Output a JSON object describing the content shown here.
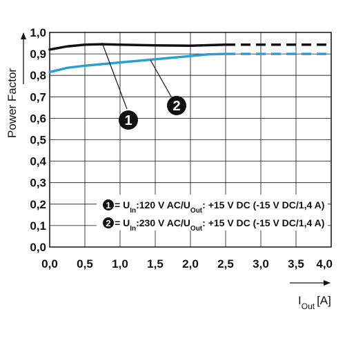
{
  "chart_data": {
    "type": "line",
    "ylabel": "Power Factor",
    "xlabel_main": "I",
    "xlabel_sub": "Out",
    "xlabel_unit": "[A]",
    "xlim": [
      0,
      4
    ],
    "ylim": [
      0,
      1
    ],
    "x_ticks": [
      "0,0",
      "0,5",
      "1,0",
      "1,5",
      "2,0",
      "2,5",
      "3,0",
      "3,5",
      "4,0"
    ],
    "y_ticks": [
      "0,0",
      "0,1",
      "0,2",
      "0,3",
      "0,4",
      "0,5",
      "0,6",
      "0,7",
      "0,8",
      "0,9",
      "1,0"
    ],
    "grid": true,
    "solid_until_x": 2.5,
    "series": [
      {
        "marker": "1",
        "color": "#111111",
        "x": [
          0.0,
          0.25,
          0.5,
          0.75,
          1.0,
          1.5,
          2.0,
          2.5,
          3.0,
          3.5,
          4.0
        ],
        "y": [
          0.92,
          0.935,
          0.943,
          0.945,
          0.943,
          0.94,
          0.938,
          0.943,
          0.943,
          0.943,
          0.943
        ],
        "legend": {
          "prefix": " = U",
          "in_sub": "In",
          "mid": ":120 V AC/U",
          "out_sub": "Out",
          "suffix": ": +15 V DC (-15 V DC/1,4 A)"
        }
      },
      {
        "marker": "2",
        "color": "#2a9fd6",
        "x": [
          0.0,
          0.25,
          0.5,
          1.0,
          1.5,
          2.0,
          2.25,
          2.5,
          3.0,
          3.5,
          4.0
        ],
        "y": [
          0.815,
          0.835,
          0.845,
          0.86,
          0.875,
          0.89,
          0.898,
          0.9,
          0.9,
          0.9,
          0.9
        ],
        "legend": {
          "prefix": " = U",
          "in_sub": "In",
          "mid": ":230 V AC/U",
          "out_sub": "Out",
          "suffix": ": +15 V DC (-15 V DC/1,4 A)"
        }
      }
    ]
  }
}
